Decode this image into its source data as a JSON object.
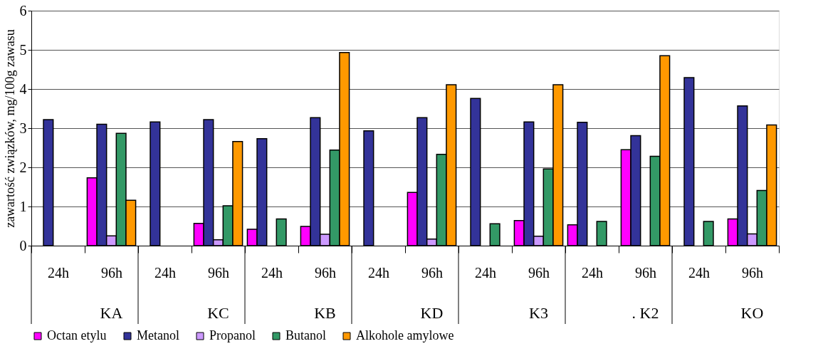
{
  "chart_data": {
    "type": "bar",
    "ylabel": "zawartość związków, mg/100g zawasu",
    "categories": [
      "24h",
      "96h",
      "24h",
      "96h",
      "24h",
      "96h",
      "24h",
      "96h",
      "24h",
      "96h",
      "24h",
      "96h",
      "24h",
      "96h"
    ],
    "annotations": [
      "KA",
      "KC",
      "KB",
      "KD",
      "K3",
      ". K2",
      "KO"
    ],
    "series": [
      {
        "name": "Octan etylu",
        "color": "#ff00ff",
        "values": [
          null,
          1.73,
          null,
          0.57,
          0.42,
          0.49,
          null,
          1.36,
          null,
          0.64,
          0.53,
          2.45,
          null,
          0.68
        ]
      },
      {
        "name": "Metanol",
        "color": "#333399",
        "values": [
          3.22,
          3.1,
          3.16,
          3.22,
          2.73,
          3.27,
          2.93,
          3.27,
          3.76,
          3.16,
          3.15,
          2.81,
          4.29,
          3.57
        ]
      },
      {
        "name": "Propanol",
        "color": "#cc99ff",
        "values": [
          null,
          0.25,
          null,
          0.15,
          null,
          0.29,
          null,
          0.17,
          null,
          0.24,
          null,
          null,
          null,
          0.3
        ]
      },
      {
        "name": "Butanol",
        "color": "#339966",
        "values": [
          null,
          2.87,
          null,
          1.02,
          0.68,
          2.44,
          null,
          2.33,
          0.56,
          1.96,
          0.62,
          2.28,
          0.62,
          1.41
        ]
      },
      {
        "name": "Alkohole amylowe",
        "color": "#ff9900",
        "values": [
          null,
          1.16,
          null,
          2.66,
          null,
          4.93,
          null,
          4.11,
          null,
          4.11,
          null,
          4.85,
          null,
          3.08
        ]
      }
    ],
    "ylim": [
      0,
      6
    ],
    "yticks": [
      0,
      1,
      2,
      3,
      4,
      5,
      6
    ],
    "grid": "y",
    "legend": "bottom"
  }
}
